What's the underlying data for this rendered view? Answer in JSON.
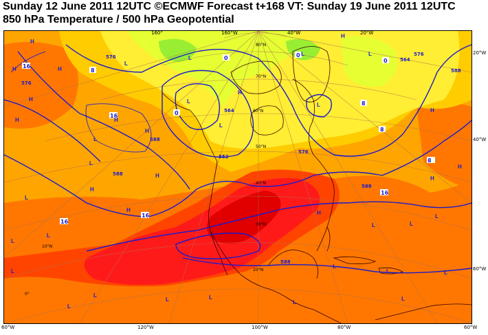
{
  "header": {
    "line1": "Sunday 12 June 2011 12UTC ©ECMWF Forecast t+168 VT: Sunday 19 June 2011 12UTC",
    "line2": "850 hPa Temperature / 500 hPa Geopotential"
  },
  "colors": {
    "t_above_24": "#ff1a1a",
    "t_20": "#ff4400",
    "t_16": "#ff7700",
    "t_12": "#ffa500",
    "t_8": "#ffcc00",
    "t_4": "#ffee33",
    "t_0": "#e5ff33",
    "t_below_0": "#99ee33",
    "contour": "#1a1acc",
    "coast": "#330000"
  },
  "top_longitudes": [
    "160°",
    "160°W",
    "40°W",
    "20°W"
  ],
  "bottom_longitudes": [
    "60°W",
    "120°W",
    "100°W",
    "80°W",
    "60°W"
  ],
  "right_latitudes": [
    "20°W",
    "40°W",
    "60°W"
  ],
  "lat_labels": [
    "80°N",
    "70°N",
    "60°N",
    "50°N",
    "40°N",
    "30°N",
    "20°N",
    "10°N",
    "0°"
  ],
  "geopotential_labels": [
    "576",
    "576",
    "576",
    "588",
    "588",
    "588",
    "588",
    "564",
    "564",
    "552",
    "576",
    "588"
  ],
  "temperature_labels": [
    "16",
    "16",
    "16",
    "16",
    "16",
    "8",
    "8",
    "8",
    "8",
    "0",
    "0",
    "0",
    "0"
  ],
  "pressure_centers": [
    "H",
    "H",
    "H",
    "H",
    "H",
    "H",
    "H",
    "H",
    "H",
    "H",
    "H",
    "H",
    "H",
    "H",
    "H",
    "H",
    "L",
    "L",
    "L",
    "L",
    "L",
    "L",
    "L",
    "L",
    "L",
    "L",
    "L",
    "L",
    "L",
    "L",
    "L",
    "L",
    "L",
    "L",
    "L",
    "L",
    "L",
    "L",
    "L",
    "L",
    "L"
  ]
}
